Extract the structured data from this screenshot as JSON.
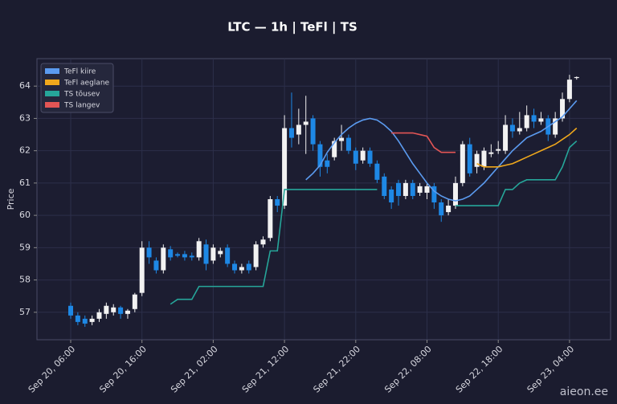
{
  "chart_data": {
    "type": "candlestick",
    "title": "LTC — 1h  |  TeFl  |  TS",
    "y_label": "Price",
    "watermark": "aieon.ee",
    "up_color": "#f2f2f2",
    "down_color": "#1e88e5",
    "grid": true,
    "legend": "upper left",
    "ylim": [
      56.15,
      64.85
    ],
    "yticks": [
      57,
      58,
      59,
      60,
      61,
      62,
      63,
      64
    ],
    "x": [
      "Sep 20, 06:00",
      "Sep 20, 07:00",
      "Sep 20, 08:00",
      "Sep 20, 09:00",
      "Sep 20, 10:00",
      "Sep 20, 11:00",
      "Sep 20, 12:00",
      "Sep 20, 13:00",
      "Sep 20, 14:00",
      "Sep 20, 15:00",
      "Sep 20, 16:00",
      "Sep 20, 17:00",
      "Sep 20, 18:00",
      "Sep 20, 19:00",
      "Sep 20, 20:00",
      "Sep 20, 21:00",
      "Sep 20, 22:00",
      "Sep 20, 23:00",
      "Sep 21, 00:00",
      "Sep 21, 01:00",
      "Sep 21, 02:00",
      "Sep 21, 03:00",
      "Sep 21, 04:00",
      "Sep 21, 05:00",
      "Sep 21, 06:00",
      "Sep 21, 07:00",
      "Sep 21, 08:00",
      "Sep 21, 09:00",
      "Sep 21, 10:00",
      "Sep 21, 11:00",
      "Sep 21, 12:00",
      "Sep 21, 13:00",
      "Sep 21, 14:00",
      "Sep 21, 15:00",
      "Sep 21, 16:00",
      "Sep 21, 17:00",
      "Sep 21, 18:00",
      "Sep 21, 19:00",
      "Sep 21, 20:00",
      "Sep 21, 21:00",
      "Sep 21, 22:00",
      "Sep 21, 23:00",
      "Sep 22, 00:00",
      "Sep 22, 01:00",
      "Sep 22, 02:00",
      "Sep 22, 03:00",
      "Sep 22, 04:00",
      "Sep 22, 05:00",
      "Sep 22, 06:00",
      "Sep 22, 07:00",
      "Sep 22, 08:00",
      "Sep 22, 09:00",
      "Sep 22, 10:00",
      "Sep 22, 11:00",
      "Sep 22, 12:00",
      "Sep 22, 13:00",
      "Sep 22, 14:00",
      "Sep 22, 15:00",
      "Sep 22, 16:00",
      "Sep 22, 17:00",
      "Sep 22, 18:00",
      "Sep 22, 19:00",
      "Sep 22, 20:00",
      "Sep 22, 21:00",
      "Sep 22, 22:00",
      "Sep 22, 23:00",
      "Sep 23, 00:00",
      "Sep 23, 01:00",
      "Sep 23, 02:00",
      "Sep 23, 03:00",
      "Sep 23, 04:00",
      "Sep 23, 05:00"
    ],
    "xticks": [
      "Sep 20, 06:00",
      "Sep 20, 16:00",
      "Sep 21, 02:00",
      "Sep 21, 12:00",
      "Sep 21, 22:00",
      "Sep 22, 08:00",
      "Sep 22, 18:00",
      "Sep 23, 04:00"
    ],
    "open": [
      57.2,
      56.9,
      56.8,
      56.7,
      56.8,
      56.95,
      57.0,
      57.15,
      56.95,
      57.1,
      57.6,
      59.0,
      58.6,
      58.3,
      58.95,
      58.8,
      58.8,
      58.75,
      58.7,
      59.1,
      58.6,
      58.8,
      59.0,
      58.5,
      58.3,
      58.5,
      58.4,
      59.1,
      59.3,
      60.5,
      60.3,
      62.7,
      62.5,
      62.8,
      63.0,
      62.2,
      61.7,
      61.8,
      62.3,
      62.4,
      62.0,
      61.7,
      62.0,
      61.6,
      61.2,
      60.8,
      61.0,
      60.6,
      61.0,
      60.7,
      60.7,
      60.9,
      60.4,
      60.1,
      60.3,
      61.0,
      62.2,
      61.5,
      61.5,
      61.9,
      62.0,
      62.0,
      62.8,
      62.6,
      62.7,
      63.1,
      62.9,
      63.0,
      62.5,
      63.0,
      63.6,
      64.25
    ],
    "high": [
      57.3,
      57.0,
      56.9,
      56.9,
      57.1,
      57.3,
      57.25,
      57.2,
      57.1,
      57.6,
      59.2,
      59.2,
      58.7,
      59.1,
      59.05,
      58.85,
      58.9,
      58.85,
      59.3,
      59.25,
      59.1,
      59.0,
      59.1,
      58.6,
      58.5,
      58.6,
      59.2,
      59.35,
      60.6,
      60.6,
      63.1,
      63.8,
      63.3,
      63.7,
      63.1,
      62.3,
      61.9,
      62.4,
      62.8,
      62.5,
      62.1,
      62.1,
      62.1,
      61.7,
      61.3,
      60.9,
      61.1,
      61.1,
      61.1,
      61.0,
      61.0,
      61.0,
      60.5,
      60.5,
      61.2,
      62.3,
      62.4,
      62.0,
      62.1,
      62.2,
      62.3,
      63.1,
      63.0,
      63.2,
      63.4,
      63.3,
      63.2,
      63.1,
      63.2,
      63.8,
      64.35,
      64.3
    ],
    "low": [
      56.8,
      56.6,
      56.55,
      56.6,
      56.7,
      56.8,
      56.9,
      56.8,
      56.8,
      57.0,
      57.5,
      58.5,
      58.2,
      58.2,
      58.6,
      58.7,
      58.6,
      58.6,
      58.6,
      58.3,
      58.5,
      58.7,
      58.4,
      58.2,
      58.2,
      58.2,
      58.3,
      59.0,
      59.2,
      60.1,
      60.2,
      62.1,
      62.2,
      61.9,
      62.0,
      61.2,
      61.3,
      61.7,
      62.0,
      61.9,
      61.4,
      61.6,
      61.5,
      61.0,
      60.5,
      60.2,
      60.3,
      60.5,
      60.5,
      60.6,
      60.5,
      60.2,
      59.8,
      60.0,
      60.2,
      60.9,
      61.2,
      61.3,
      61.4,
      61.8,
      61.9,
      61.9,
      62.4,
      62.5,
      62.6,
      62.7,
      62.8,
      62.3,
      62.4,
      62.9,
      63.5,
      64.2
    ],
    "close": [
      56.9,
      56.7,
      56.65,
      56.8,
      57.0,
      57.2,
      57.15,
      56.95,
      57.05,
      57.55,
      59.0,
      58.7,
      58.3,
      59.0,
      58.7,
      58.75,
      58.7,
      58.7,
      59.2,
      58.5,
      59.0,
      58.9,
      58.5,
      58.3,
      58.4,
      58.3,
      59.1,
      59.25,
      60.5,
      60.3,
      62.7,
      62.4,
      62.8,
      62.9,
      62.2,
      61.5,
      61.5,
      62.3,
      62.4,
      62.0,
      61.6,
      62.0,
      61.6,
      61.1,
      60.6,
      60.4,
      60.6,
      61.0,
      60.6,
      60.9,
      60.9,
      60.4,
      60.0,
      60.3,
      61.0,
      62.2,
      61.3,
      61.9,
      62.0,
      61.95,
      62.05,
      62.8,
      62.6,
      62.7,
      63.1,
      62.9,
      63.0,
      62.5,
      63.0,
      63.6,
      64.2,
      64.28
    ],
    "series": [
      {
        "name": "TeFl kiire",
        "color": "#5b9bf0",
        "values": [
          null,
          null,
          null,
          null,
          null,
          null,
          null,
          null,
          null,
          null,
          null,
          null,
          null,
          null,
          null,
          null,
          null,
          null,
          null,
          null,
          null,
          null,
          null,
          null,
          null,
          null,
          null,
          null,
          null,
          null,
          null,
          null,
          null,
          61.1,
          61.3,
          61.55,
          61.95,
          62.25,
          62.5,
          62.7,
          62.85,
          62.95,
          63.0,
          62.95,
          62.8,
          62.6,
          62.3,
          61.95,
          61.6,
          61.3,
          61.0,
          60.75,
          60.6,
          60.5,
          60.45,
          60.5,
          60.6,
          60.8,
          61.0,
          61.25,
          61.5,
          61.75,
          62.0,
          62.2,
          62.4,
          62.5,
          62.6,
          62.75,
          62.9,
          63.05,
          63.3,
          63.55
        ]
      },
      {
        "name": "TeFl aeglane",
        "color": "#f0a81c",
        "values": [
          null,
          null,
          null,
          null,
          null,
          null,
          null,
          null,
          null,
          null,
          null,
          null,
          null,
          null,
          null,
          null,
          null,
          null,
          null,
          null,
          null,
          null,
          null,
          null,
          null,
          null,
          null,
          null,
          null,
          null,
          null,
          null,
          null,
          null,
          null,
          null,
          null,
          null,
          null,
          null,
          null,
          null,
          null,
          null,
          null,
          null,
          null,
          null,
          null,
          null,
          null,
          null,
          null,
          null,
          null,
          null,
          null,
          61.6,
          61.5,
          61.5,
          61.5,
          61.55,
          61.6,
          61.7,
          61.8,
          61.9,
          62.0,
          62.1,
          62.2,
          62.35,
          62.5,
          62.7
        ]
      },
      {
        "name": "TS tõusev",
        "color": "#26a69a",
        "values": [
          null,
          null,
          null,
          null,
          null,
          null,
          null,
          null,
          null,
          null,
          null,
          null,
          null,
          null,
          57.25,
          57.4,
          57.4,
          57.4,
          57.8,
          57.8,
          57.8,
          57.8,
          57.8,
          57.8,
          57.8,
          57.8,
          57.8,
          57.8,
          58.9,
          58.9,
          60.8,
          60.8,
          60.8,
          60.8,
          60.8,
          60.8,
          60.8,
          60.8,
          60.8,
          60.8,
          60.8,
          60.8,
          60.8,
          60.8,
          null,
          null,
          null,
          null,
          null,
          null,
          null,
          null,
          null,
          null,
          60.3,
          60.3,
          60.3,
          60.3,
          60.3,
          60.3,
          60.3,
          60.8,
          60.8,
          61.0,
          61.1,
          61.1,
          61.1,
          61.1,
          61.1,
          61.5,
          62.1,
          62.3
        ]
      },
      {
        "name": "TS langev",
        "color": "#e25555",
        "values": [
          null,
          null,
          null,
          null,
          null,
          null,
          null,
          null,
          null,
          null,
          null,
          null,
          null,
          null,
          null,
          null,
          null,
          null,
          null,
          null,
          null,
          null,
          null,
          null,
          null,
          null,
          null,
          null,
          null,
          null,
          null,
          null,
          null,
          null,
          null,
          null,
          null,
          null,
          null,
          null,
          null,
          null,
          null,
          null,
          null,
          62.55,
          62.55,
          62.55,
          62.55,
          62.5,
          62.45,
          62.1,
          61.95,
          61.95,
          61.95,
          null,
          null,
          null,
          null,
          null,
          null,
          null,
          null,
          null,
          null,
          null,
          null,
          null,
          null,
          null,
          null,
          null
        ]
      }
    ]
  }
}
